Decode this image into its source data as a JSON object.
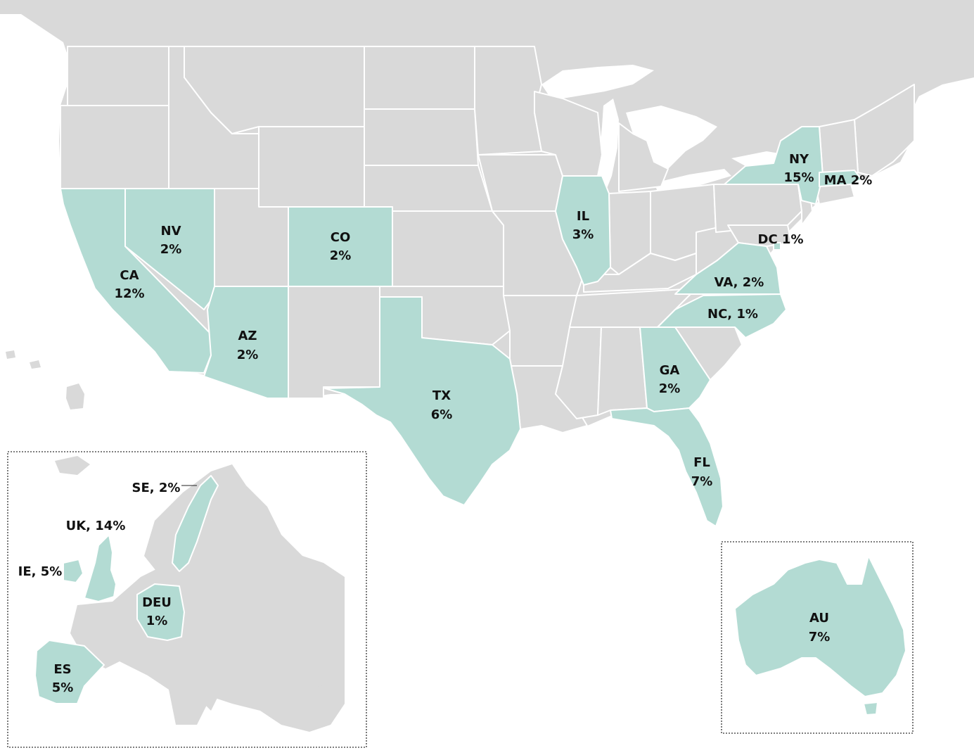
{
  "colors": {
    "background": "#ffffff",
    "base_land": "#d9d9d9",
    "highlight": "#b3dbd3",
    "border": "#ffffff",
    "label_text": "#111111",
    "inset_frame": "#333333"
  },
  "regions": [
    {
      "id": "ny",
      "code": "NY",
      "pct": "15%",
      "label_style": "stacked"
    },
    {
      "id": "ma",
      "code": "MA",
      "pct": "2%",
      "label_style": "space"
    },
    {
      "id": "ca",
      "code": "CA",
      "pct": "12%",
      "label_style": "stacked"
    },
    {
      "id": "nv",
      "code": "NV",
      "pct": "2%",
      "label_style": "stacked"
    },
    {
      "id": "co",
      "code": "CO",
      "pct": "2%",
      "label_style": "stacked"
    },
    {
      "id": "il",
      "code": "IL",
      "pct": "3%",
      "label_style": "stacked"
    },
    {
      "id": "dc",
      "code": "DC",
      "pct": "1%",
      "label_style": "space"
    },
    {
      "id": "va",
      "code": "VA",
      "pct": "2%",
      "label_style": "comma"
    },
    {
      "id": "nc",
      "code": "NC",
      "pct": "1%",
      "label_style": "comma"
    },
    {
      "id": "az",
      "code": "AZ",
      "pct": "2%",
      "label_style": "stacked"
    },
    {
      "id": "tx",
      "code": "TX",
      "pct": "6%",
      "label_style": "stacked"
    },
    {
      "id": "ga",
      "code": "GA",
      "pct": "2%",
      "label_style": "stacked"
    },
    {
      "id": "fl",
      "code": "FL",
      "pct": "7%",
      "label_style": "stacked"
    },
    {
      "id": "au",
      "code": "AU",
      "pct": "7%",
      "label_style": "stacked"
    },
    {
      "id": "se",
      "code": "SE",
      "pct": "2%",
      "label_style": "comma"
    },
    {
      "id": "uk",
      "code": "UK",
      "pct": "14%",
      "label_style": "comma"
    },
    {
      "id": "ie",
      "code": "IE",
      "pct": "5%",
      "label_style": "comma"
    },
    {
      "id": "deu",
      "code": "DEU",
      "pct": "1%",
      "label_style": "stacked"
    },
    {
      "id": "es",
      "code": "ES",
      "pct": "5%",
      "label_style": "stacked"
    }
  ],
  "labels": {
    "ny": {
      "line1": "NY",
      "line2": "15%"
    },
    "ma": {
      "line1": "MA 2%"
    },
    "ca": {
      "line1": "CA",
      "line2": "12%"
    },
    "nv": {
      "line1": "NV",
      "line2": "2%"
    },
    "co": {
      "line1": "CO",
      "line2": "2%"
    },
    "il": {
      "line1": "IL",
      "line2": "3%"
    },
    "dc": {
      "line1": "DC 1%"
    },
    "va": {
      "line1": "VA, 2%"
    },
    "nc": {
      "line1": "NC, 1%"
    },
    "az": {
      "line1": "AZ",
      "line2": "2%"
    },
    "tx": {
      "line1": "TX",
      "line2": "6%"
    },
    "ga": {
      "line1": "GA",
      "line2": "2%"
    },
    "fl": {
      "line1": "FL",
      "line2": "7%"
    },
    "au": {
      "line1": "AU",
      "line2": "7%"
    },
    "se": {
      "line1": "SE, 2%"
    },
    "uk": {
      "line1": "UK, 14%"
    },
    "ie": {
      "line1": "IE, 5%"
    },
    "deu": {
      "line1": "DEU",
      "line2": "1%"
    },
    "es": {
      "line1": "ES",
      "line2": "5%"
    }
  }
}
